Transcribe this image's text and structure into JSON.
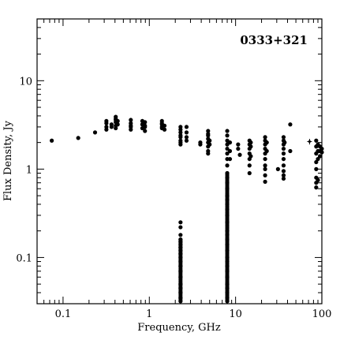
{
  "chart_data": {
    "type": "scatter",
    "title": "0333+321",
    "xlabel": "Frequency, GHz",
    "ylabel": "Flux Density, Jy",
    "xscale": "log",
    "yscale": "log",
    "xlim": [
      0.05,
      100
    ],
    "ylim": [
      0.03,
      50
    ],
    "grid": false,
    "x_ticks": [
      {
        "value": 0.1,
        "label": "0.1"
      },
      {
        "value": 1,
        "label": "1"
      },
      {
        "value": 10,
        "label": "10"
      },
      {
        "value": 100,
        "label": "100"
      }
    ],
    "y_ticks": [
      {
        "value": 0.1,
        "label": "0.1"
      },
      {
        "value": 1,
        "label": "1"
      },
      {
        "value": 10,
        "label": "10"
      }
    ],
    "colors": {
      "points": "#000000",
      "axes": "#000000"
    },
    "points": [
      [
        0.074,
        2.1
      ],
      [
        0.15,
        2.25
      ],
      [
        0.235,
        2.6
      ],
      [
        0.318,
        3.0
      ],
      [
        0.318,
        3.3
      ],
      [
        0.318,
        2.8
      ],
      [
        0.318,
        3.5
      ],
      [
        0.365,
        3.2
      ],
      [
        0.365,
        3.0
      ],
      [
        0.408,
        3.1
      ],
      [
        0.408,
        3.4
      ],
      [
        0.408,
        3.7
      ],
      [
        0.408,
        3.9
      ],
      [
        0.408,
        2.9
      ],
      [
        0.408,
        3.6
      ],
      [
        0.43,
        3.2
      ],
      [
        0.43,
        3.5
      ],
      [
        0.61,
        3.0
      ],
      [
        0.61,
        3.3
      ],
      [
        0.61,
        2.8
      ],
      [
        0.61,
        3.6
      ],
      [
        0.61,
        3.1
      ],
      [
        0.83,
        3.2
      ],
      [
        0.83,
        2.9
      ],
      [
        0.83,
        3.5
      ],
      [
        0.89,
        3.1
      ],
      [
        0.89,
        3.4
      ],
      [
        0.89,
        2.7
      ],
      [
        0.89,
        3.0
      ],
      [
        1.4,
        3.0
      ],
      [
        1.4,
        3.3
      ],
      [
        1.4,
        3.5
      ],
      [
        1.4,
        2.9
      ],
      [
        1.4,
        3.2
      ],
      [
        1.5,
        3.1
      ],
      [
        1.5,
        2.8
      ],
      [
        2.3,
        2.1
      ],
      [
        2.3,
        2.3
      ],
      [
        2.3,
        2.6
      ],
      [
        2.3,
        2.8
      ],
      [
        2.3,
        3.0
      ],
      [
        2.3,
        1.9
      ],
      [
        2.3,
        2.4
      ],
      [
        2.3,
        2.0
      ],
      [
        2.3,
        0.25
      ],
      [
        2.3,
        0.22
      ],
      [
        2.3,
        0.18
      ],
      [
        2.3,
        0.16
      ],
      [
        2.3,
        0.15
      ],
      [
        2.3,
        0.14
      ],
      [
        2.3,
        0.13
      ],
      [
        2.3,
        0.12
      ],
      [
        2.3,
        0.11
      ],
      [
        2.3,
        0.1
      ],
      [
        2.3,
        0.09
      ],
      [
        2.3,
        0.08
      ],
      [
        2.3,
        0.07
      ],
      [
        2.3,
        0.06
      ],
      [
        2.3,
        0.05
      ],
      [
        2.3,
        0.045
      ],
      [
        2.3,
        0.04
      ],
      [
        2.3,
        0.035
      ],
      [
        2.3,
        0.032
      ],
      [
        2.7,
        3.0
      ],
      [
        2.7,
        2.6
      ],
      [
        2.7,
        2.3
      ],
      [
        2.7,
        2.1
      ],
      [
        3.9,
        2.0
      ],
      [
        3.9,
        1.9
      ],
      [
        4.8,
        2.7
      ],
      [
        4.8,
        2.4
      ],
      [
        4.8,
        2.2
      ],
      [
        4.8,
        2.0
      ],
      [
        4.8,
        1.8
      ],
      [
        4.8,
        1.6
      ],
      [
        4.8,
        1.5
      ],
      [
        4.8,
        2.5
      ],
      [
        5.0,
        1.9
      ],
      [
        5.0,
        2.1
      ],
      [
        8.0,
        2.7
      ],
      [
        8.0,
        2.4
      ],
      [
        8.0,
        2.1
      ],
      [
        8.0,
        1.9
      ],
      [
        8.0,
        1.7
      ],
      [
        8.0,
        1.5
      ],
      [
        8.0,
        1.3
      ],
      [
        8.0,
        1.1
      ],
      [
        8.0,
        0.9
      ],
      [
        8.0,
        0.8
      ],
      [
        8.0,
        0.7
      ],
      [
        8.0,
        0.6
      ],
      [
        8.0,
        0.5
      ],
      [
        8.0,
        0.45
      ],
      [
        8.0,
        0.4
      ],
      [
        8.0,
        0.35
      ],
      [
        8.0,
        0.3
      ],
      [
        8.0,
        0.25
      ],
      [
        8.0,
        0.2
      ],
      [
        8.0,
        0.18
      ],
      [
        8.0,
        0.16
      ],
      [
        8.0,
        0.14
      ],
      [
        8.0,
        0.12
      ],
      [
        8.0,
        0.1
      ],
      [
        8.0,
        0.09
      ],
      [
        8.0,
        0.08
      ],
      [
        8.0,
        0.07
      ],
      [
        8.0,
        0.06
      ],
      [
        8.0,
        0.05
      ],
      [
        8.0,
        0.045
      ],
      [
        8.0,
        0.04
      ],
      [
        8.0,
        0.035
      ],
      [
        8.0,
        0.032
      ],
      [
        8.6,
        2.0
      ],
      [
        8.6,
        1.6
      ],
      [
        8.6,
        1.3
      ],
      [
        10.7,
        1.9
      ],
      [
        10.7,
        1.7
      ],
      [
        11.2,
        1.45
      ],
      [
        14.5,
        2.1
      ],
      [
        14.5,
        1.9
      ],
      [
        14.5,
        1.7
      ],
      [
        14.5,
        1.5
      ],
      [
        14.5,
        1.3
      ],
      [
        14.5,
        1.1
      ],
      [
        14.5,
        0.9
      ],
      [
        15.0,
        2.0
      ],
      [
        15.0,
        1.8
      ],
      [
        15.0,
        1.4
      ],
      [
        22.0,
        2.3
      ],
      [
        22.0,
        2.1
      ],
      [
        22.0,
        1.9
      ],
      [
        22.0,
        1.7
      ],
      [
        22.0,
        1.5
      ],
      [
        22.0,
        1.3
      ],
      [
        22.0,
        1.1
      ],
      [
        22.0,
        1.0
      ],
      [
        22.0,
        0.85
      ],
      [
        22.0,
        0.72
      ],
      [
        23.0,
        2.0
      ],
      [
        23.0,
        1.6
      ],
      [
        31.0,
        1.0
      ],
      [
        36.0,
        2.3
      ],
      [
        36.0,
        2.1
      ],
      [
        36.0,
        1.9
      ],
      [
        36.0,
        1.7
      ],
      [
        36.0,
        1.5
      ],
      [
        36.0,
        1.3
      ],
      [
        36.0,
        1.1
      ],
      [
        36.0,
        0.95
      ],
      [
        36.0,
        0.85
      ],
      [
        36.0,
        0.78
      ],
      [
        37.0,
        2.0
      ],
      [
        43.0,
        3.2
      ],
      [
        43.0,
        1.6
      ],
      [
        86.0,
        2.1
      ],
      [
        86.0,
        1.8
      ],
      [
        86.0,
        1.5
      ],
      [
        86.0,
        1.2
      ],
      [
        86.0,
        1.0
      ],
      [
        86.0,
        0.8
      ],
      [
        86.0,
        0.7
      ],
      [
        86.0,
        0.62
      ],
      [
        90.0,
        1.9
      ],
      [
        90.0,
        1.6
      ],
      [
        90.0,
        1.3
      ],
      [
        90.0,
        0.75
      ],
      [
        95.0,
        1.8
      ],
      [
        95.0,
        1.6
      ],
      [
        95.0,
        1.4
      ],
      [
        100.0,
        1.7
      ],
      [
        100.0,
        1.55
      ]
    ],
    "error_points": [
      [
        72.0,
        2.05,
        1.9,
        2.2
      ]
    ]
  }
}
